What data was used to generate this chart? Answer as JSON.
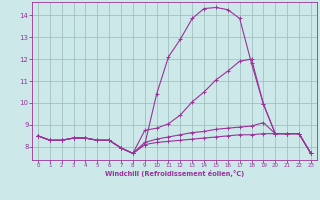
{
  "xlabel": "Windchill (Refroidissement éolien,°C)",
  "xlim": [
    -0.5,
    23.5
  ],
  "ylim": [
    7.4,
    14.6
  ],
  "xticks": [
    0,
    1,
    2,
    3,
    4,
    5,
    6,
    7,
    8,
    9,
    10,
    11,
    12,
    13,
    14,
    15,
    16,
    17,
    18,
    19,
    20,
    21,
    22,
    23
  ],
  "yticks": [
    8,
    9,
    10,
    11,
    12,
    13,
    14
  ],
  "bg_color": "#cce8e8",
  "line_color": "#993399",
  "grid_color": "#99bbbb",
  "curves": {
    "line1": [
      8.5,
      8.3,
      8.3,
      8.4,
      8.4,
      8.3,
      8.3,
      7.95,
      7.7,
      8.1,
      10.4,
      12.1,
      12.9,
      13.85,
      14.3,
      14.35,
      14.25,
      13.85,
      11.8,
      9.95,
      8.6,
      8.6,
      8.6,
      7.7
    ],
    "line2": [
      8.5,
      8.3,
      8.3,
      8.4,
      8.4,
      8.3,
      8.3,
      7.95,
      7.7,
      8.75,
      8.85,
      9.05,
      9.45,
      10.05,
      10.5,
      11.05,
      11.45,
      11.9,
      12.0,
      9.95,
      8.6,
      8.6,
      8.6,
      7.7
    ],
    "line3": [
      8.5,
      8.3,
      8.3,
      8.4,
      8.4,
      8.3,
      8.3,
      7.95,
      7.7,
      8.2,
      8.35,
      8.45,
      8.55,
      8.65,
      8.7,
      8.8,
      8.85,
      8.9,
      8.95,
      9.1,
      8.6,
      8.6,
      8.6,
      7.7
    ],
    "line4": [
      8.5,
      8.3,
      8.3,
      8.4,
      8.4,
      8.3,
      8.3,
      7.95,
      7.7,
      8.1,
      8.2,
      8.25,
      8.3,
      8.35,
      8.4,
      8.45,
      8.5,
      8.55,
      8.55,
      8.6,
      8.6,
      8.6,
      8.6,
      7.7
    ]
  }
}
